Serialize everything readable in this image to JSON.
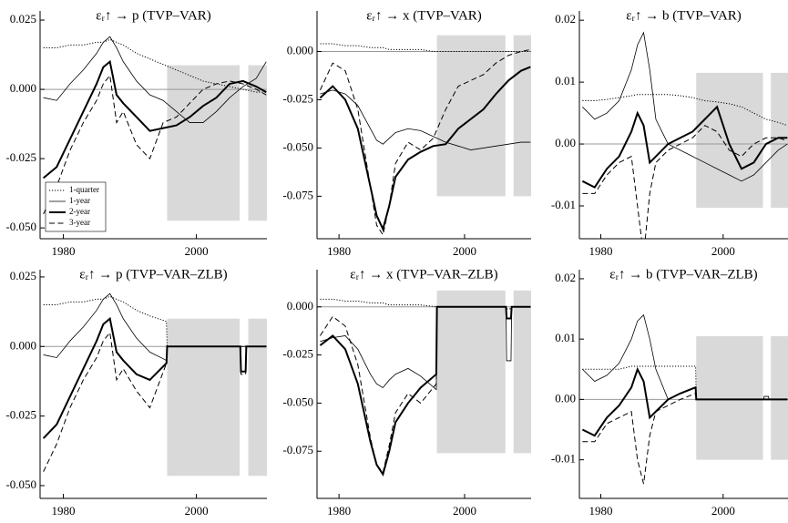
{
  "chart_data": [
    {
      "type": "line",
      "title": "εᵣ↑ → p  (TVP–VAR)",
      "legend": "lower left",
      "hline": 0,
      "x": [
        1977,
        1979,
        1981,
        1983,
        1985,
        1986,
        1987,
        1988,
        1989,
        1991,
        1993,
        1995,
        1997,
        1999,
        2001,
        2003,
        2005,
        2007,
        2009,
        2010.5
      ],
      "xlim": [
        1976.5,
        2010.6
      ],
      "xticks": [
        1980,
        2000
      ],
      "ylim": [
        -0.0539,
        0.0283
      ],
      "yticks": [
        {
          "value": -0.05,
          "label": "-0.050"
        },
        -0.025,
        {
          "value": 0,
          "label": "0.000"
        },
        0.025
      ],
      "shaded": [
        {
          "x": [
            1995.6,
            2006.5
          ],
          "y": [
            -0.0474,
            0.0087
          ]
        },
        {
          "x": [
            2007.8,
            2010.6
          ],
          "y": [
            -0.0474,
            0.0087
          ]
        }
      ],
      "series": [
        {
          "name": "1-quarter",
          "color": "#000",
          "style": "dotted",
          "values": [
            0.015,
            0.015,
            0.016,
            0.016,
            0.017,
            0.017,
            0.018,
            0.017,
            0.016,
            0.013,
            0.011,
            0.009,
            0.007,
            0.005,
            0.003,
            0.002,
            0.001,
            0,
            -0.001,
            -0.001
          ]
        },
        {
          "name": "1-year",
          "color": "#000",
          "style": "thin",
          "values": [
            -0.003,
            -0.004,
            0.002,
            0.007,
            0.013,
            0.017,
            0.019,
            0.015,
            0.01,
            0.003,
            -0.002,
            -0.004,
            -0.008,
            -0.012,
            -0.012,
            -0.008,
            -0.003,
            0.001,
            0.004,
            0.01
          ]
        },
        {
          "name": "2-year",
          "color": "#000",
          "style": "thick",
          "values": [
            -0.032,
            -0.028,
            -0.018,
            -0.008,
            0.002,
            0.008,
            0.01,
            -0.002,
            -0.005,
            -0.01,
            -0.015,
            -0.014,
            -0.013,
            -0.01,
            -0.006,
            -0.003,
            0.002,
            0.003,
            0.001,
            -0.001
          ]
        },
        {
          "name": "3-year",
          "color": "#000",
          "style": "dashed",
          "values": [
            -0.045,
            -0.035,
            -0.022,
            -0.012,
            -0.004,
            0.002,
            0.005,
            -0.012,
            -0.008,
            -0.02,
            -0.025,
            -0.012,
            -0.01,
            -0.005,
            0,
            0.002,
            0.003,
            0.002,
            0,
            -0.002
          ]
        }
      ]
    },
    {
      "type": "line",
      "title": "εᵣ↑ → x  (TVP–VAR)",
      "hline": 0,
      "x": [
        1977,
        1979,
        1981,
        1983,
        1985,
        1986,
        1987,
        1988,
        1989,
        1991,
        1993,
        1995,
        1997,
        1999,
        2001,
        2003,
        2005,
        2007,
        2009,
        2010.5
      ],
      "xlim": [
        1976.5,
        2010.6
      ],
      "xticks": [
        1980,
        2000
      ],
      "ylim": [
        -0.097,
        0.021
      ],
      "yticks": [
        -0.075,
        {
          "value": -0.05,
          "label": "-0.050"
        },
        -0.025,
        {
          "value": 0,
          "label": "0.000"
        }
      ],
      "shaded": [
        {
          "x": [
            1995.6,
            2006.5
          ],
          "y": [
            -0.075,
            0.0084
          ]
        },
        {
          "x": [
            2007.8,
            2010.6
          ],
          "y": [
            -0.075,
            0.0084
          ]
        }
      ],
      "series": [
        {
          "color": "#000",
          "style": "dotted",
          "values": [
            0.004,
            0.004,
            0.003,
            0.003,
            0.002,
            0.002,
            0.002,
            0.001,
            0.001,
            0.001,
            0.001,
            0,
            0,
            0,
            0,
            0,
            0,
            0,
            0,
            0
          ]
        },
        {
          "color": "#000",
          "style": "thin",
          "values": [
            -0.022,
            -0.02,
            -0.022,
            -0.028,
            -0.04,
            -0.046,
            -0.048,
            -0.045,
            -0.042,
            -0.04,
            -0.041,
            -0.044,
            -0.047,
            -0.049,
            -0.051,
            -0.05,
            -0.049,
            -0.048,
            -0.047,
            -0.047
          ]
        },
        {
          "color": "#000",
          "style": "thick",
          "values": [
            -0.024,
            -0.018,
            -0.025,
            -0.04,
            -0.07,
            -0.085,
            -0.092,
            -0.08,
            -0.065,
            -0.056,
            -0.052,
            -0.049,
            -0.048,
            -0.04,
            -0.035,
            -0.03,
            -0.022,
            -0.015,
            -0.01,
            -0.008
          ]
        },
        {
          "color": "#000",
          "style": "dashed",
          "values": [
            -0.02,
            -0.006,
            -0.01,
            -0.03,
            -0.07,
            -0.09,
            -0.095,
            -0.08,
            -0.058,
            -0.047,
            -0.051,
            -0.045,
            -0.03,
            -0.018,
            -0.015,
            -0.012,
            -0.006,
            -0.002,
            0,
            0.001
          ]
        }
      ]
    },
    {
      "type": "line",
      "title": "εᵣ↑ → b  (TVP–VAR)",
      "hline": 0,
      "x": [
        1977,
        1979,
        1981,
        1983,
        1985,
        1986,
        1987,
        1988,
        1989,
        1991,
        1993,
        1995,
        1997,
        1999,
        2001,
        2003,
        2005,
        2007,
        2009,
        2010.5
      ],
      "xlim": [
        1976.5,
        2010.6
      ],
      "xticks": [
        1980,
        2000
      ],
      "ylim": [
        -0.0153,
        0.0215
      ],
      "yticks": [
        -0.01,
        {
          "value": 0,
          "label": "0.00"
        },
        0.01,
        0.02
      ],
      "shaded": [
        {
          "x": [
            1995.6,
            2006.5
          ],
          "y": [
            -0.0103,
            0.0115
          ]
        },
        {
          "x": [
            2007.8,
            2010.6
          ],
          "y": [
            -0.0103,
            0.0115
          ]
        }
      ],
      "series": [
        {
          "color": "#000",
          "style": "dotted",
          "values": [
            0.007,
            0.007,
            0.0072,
            0.0075,
            0.0078,
            0.008,
            0.008,
            0.008,
            0.008,
            0.008,
            0.0078,
            0.0075,
            0.007,
            0.0068,
            0.0065,
            0.006,
            0.005,
            0.004,
            0.0035,
            0.003
          ]
        },
        {
          "color": "#000",
          "style": "thin",
          "values": [
            0.006,
            0.004,
            0.005,
            0.007,
            0.012,
            0.016,
            0.018,
            0.012,
            0.004,
            0,
            -0.001,
            -0.002,
            -0.003,
            -0.004,
            -0.005,
            -0.006,
            -0.005,
            -0.003,
            -0.001,
            0
          ]
        },
        {
          "color": "#000",
          "style": "thick",
          "values": [
            -0.006,
            -0.007,
            -0.004,
            -0.002,
            0.002,
            0.005,
            0.003,
            -0.003,
            -0.002,
            0,
            0.001,
            0.002,
            0.004,
            0.006,
            0,
            -0.004,
            -0.003,
            0,
            0.001,
            0.001
          ]
        },
        {
          "color": "#000",
          "style": "dashed",
          "values": [
            -0.008,
            -0.008,
            -0.005,
            -0.003,
            -0.002,
            -0.01,
            -0.018,
            -0.008,
            -0.003,
            -0.001,
            0,
            0.001,
            0.003,
            0.002,
            -0.001,
            -0.002,
            0,
            0.001,
            0.001,
            0.0005
          ]
        }
      ]
    },
    {
      "type": "line",
      "title": "εᵣ↑ → p  (TVP–VAR–ZLB)",
      "hline": 0,
      "x": [
        1977,
        1979,
        1981,
        1983,
        1985,
        1986,
        1987,
        1988,
        1989,
        1991,
        1993,
        1995.5,
        1995.6,
        2006.6,
        2006.7,
        2007.4,
        2007.5,
        2010.5
      ],
      "xlim": [
        1976.5,
        2010.6
      ],
      "xticks": [
        1980,
        2000
      ],
      "ylim": [
        -0.0546,
        0.0276
      ],
      "yticks": [
        {
          "value": -0.05,
          "label": "-0.050"
        },
        -0.025,
        {
          "value": 0,
          "label": "0.000"
        },
        0.025
      ],
      "shaded": [
        {
          "x": [
            1995.6,
            2006.5
          ],
          "y": [
            -0.0465,
            0.01
          ]
        },
        {
          "x": [
            2007.8,
            2010.6
          ],
          "y": [
            -0.0465,
            0.01
          ]
        }
      ],
      "series": [
        {
          "color": "#000",
          "style": "dotted",
          "values": [
            0.015,
            0.015,
            0.016,
            0.016,
            0.017,
            0.017,
            0.018,
            0.017,
            0.016,
            0.013,
            0.011,
            0.009,
            0,
            0,
            0,
            0,
            0,
            0
          ]
        },
        {
          "color": "#000",
          "style": "thin",
          "values": [
            -0.003,
            -0.004,
            0.002,
            0.007,
            0.013,
            0.017,
            0.019,
            0.015,
            0.01,
            0.003,
            -0.002,
            -0.005,
            0,
            0,
            0,
            0,
            0,
            0
          ]
        },
        {
          "color": "#000",
          "style": "thick",
          "values": [
            -0.033,
            -0.028,
            -0.018,
            -0.008,
            0.002,
            0.008,
            0.01,
            -0.002,
            -0.005,
            -0.01,
            -0.012,
            -0.006,
            0,
            0,
            -0.009,
            -0.009,
            0,
            0
          ]
        },
        {
          "color": "#000",
          "style": "dashed",
          "values": [
            -0.045,
            -0.035,
            -0.022,
            -0.012,
            -0.004,
            0.002,
            0.005,
            -0.012,
            -0.008,
            -0.016,
            -0.022,
            -0.006,
            0,
            0,
            -0.01,
            -0.01,
            0,
            0
          ]
        }
      ]
    },
    {
      "type": "line",
      "title": "εᵣ↑ → x  (TVP–VAR–ZLB)",
      "hline": 0,
      "x": [
        1977,
        1979,
        1981,
        1983,
        1985,
        1986,
        1987,
        1988,
        1989,
        1991,
        1993,
        1995.5,
        1995.6,
        2006.6,
        2006.7,
        2007.4,
        2007.5,
        2010.5
      ],
      "xlim": [
        1976.5,
        2010.6
      ],
      "xticks": [
        1980,
        2000
      ],
      "ylim": [
        -0.0995,
        0.0193
      ],
      "yticks": [
        -0.075,
        {
          "value": -0.05,
          "label": "-0.050"
        },
        -0.025,
        {
          "value": 0,
          "label": "0.000"
        }
      ],
      "shaded": [
        {
          "x": [
            1995.6,
            2006.5
          ],
          "y": [
            -0.076,
            0.0085
          ]
        },
        {
          "x": [
            2007.8,
            2010.6
          ],
          "y": [
            -0.076,
            0.0085
          ]
        }
      ],
      "series": [
        {
          "color": "#000",
          "style": "dotted",
          "values": [
            0.004,
            0.004,
            0.003,
            0.003,
            0.002,
            0.002,
            0.002,
            0.001,
            0.001,
            0.001,
            0.001,
            0,
            0,
            0,
            -0.001,
            -0.001,
            0,
            0
          ]
        },
        {
          "color": "#000",
          "style": "thin",
          "values": [
            -0.018,
            -0.016,
            -0.015,
            -0.022,
            -0.035,
            -0.04,
            -0.042,
            -0.038,
            -0.035,
            -0.032,
            -0.036,
            -0.043,
            0,
            0,
            -0.028,
            -0.028,
            0,
            0
          ]
        },
        {
          "color": "#000",
          "style": "thick",
          "values": [
            -0.02,
            -0.015,
            -0.022,
            -0.04,
            -0.07,
            -0.082,
            -0.087,
            -0.075,
            -0.06,
            -0.05,
            -0.042,
            -0.035,
            0,
            0,
            -0.006,
            -0.006,
            0,
            0
          ]
        },
        {
          "color": "#000",
          "style": "dashed",
          "values": [
            -0.015,
            -0.005,
            -0.01,
            -0.03,
            -0.068,
            -0.082,
            -0.086,
            -0.072,
            -0.055,
            -0.045,
            -0.05,
            -0.04,
            0,
            0,
            -0.006,
            -0.006,
            0,
            0
          ]
        }
      ]
    },
    {
      "type": "line",
      "title": "εᵣ↑ → b  (TVP–VAR–ZLB)",
      "hline": 0,
      "x": [
        1977,
        1979,
        1981,
        1983,
        1985,
        1986,
        1987,
        1988,
        1989,
        1991,
        1993,
        1995.5,
        1995.6,
        2006.6,
        2006.7,
        2007.4,
        2007.5,
        2010.5
      ],
      "xlim": [
        1976.5,
        2010.6
      ],
      "xticks": [
        1980,
        2000
      ],
      "ylim": [
        -0.0164,
        0.0215
      ],
      "yticks": [
        -0.01,
        {
          "value": 0,
          "label": "0.00"
        },
        0.01,
        0.02
      ],
      "shaded": [
        {
          "x": [
            1995.6,
            2006.5
          ],
          "y": [
            -0.01,
            0.0105
          ]
        },
        {
          "x": [
            2007.8,
            2010.6
          ],
          "y": [
            -0.01,
            0.0105
          ]
        }
      ],
      "series": [
        {
          "color": "#000",
          "style": "dotted",
          "values": [
            0.005,
            0.005,
            0.005,
            0.005,
            0.0055,
            0.0055,
            0.0055,
            0.0055,
            0.0055,
            0.0055,
            0.0055,
            0.0055,
            0,
            0,
            0,
            0,
            0,
            0
          ]
        },
        {
          "color": "#000",
          "style": "thin",
          "values": [
            0.005,
            0.003,
            0.004,
            0.006,
            0.01,
            0.013,
            0.014,
            0.01,
            0.005,
            0,
            0.001,
            0.002,
            0,
            0,
            0.0005,
            0.0005,
            0,
            0
          ]
        },
        {
          "color": "#000",
          "style": "thick",
          "values": [
            -0.005,
            -0.006,
            -0.003,
            -0.001,
            0.002,
            0.005,
            0.003,
            -0.003,
            -0.002,
            0,
            0.001,
            0.002,
            0,
            0,
            0,
            0,
            0,
            0
          ]
        },
        {
          "color": "#000",
          "style": "dashed",
          "values": [
            -0.007,
            -0.007,
            -0.004,
            -0.003,
            -0.002,
            -0.01,
            -0.014,
            -0.006,
            -0.002,
            -0.001,
            0,
            0.001,
            0,
            0,
            0,
            0,
            0,
            0
          ]
        }
      ]
    }
  ]
}
